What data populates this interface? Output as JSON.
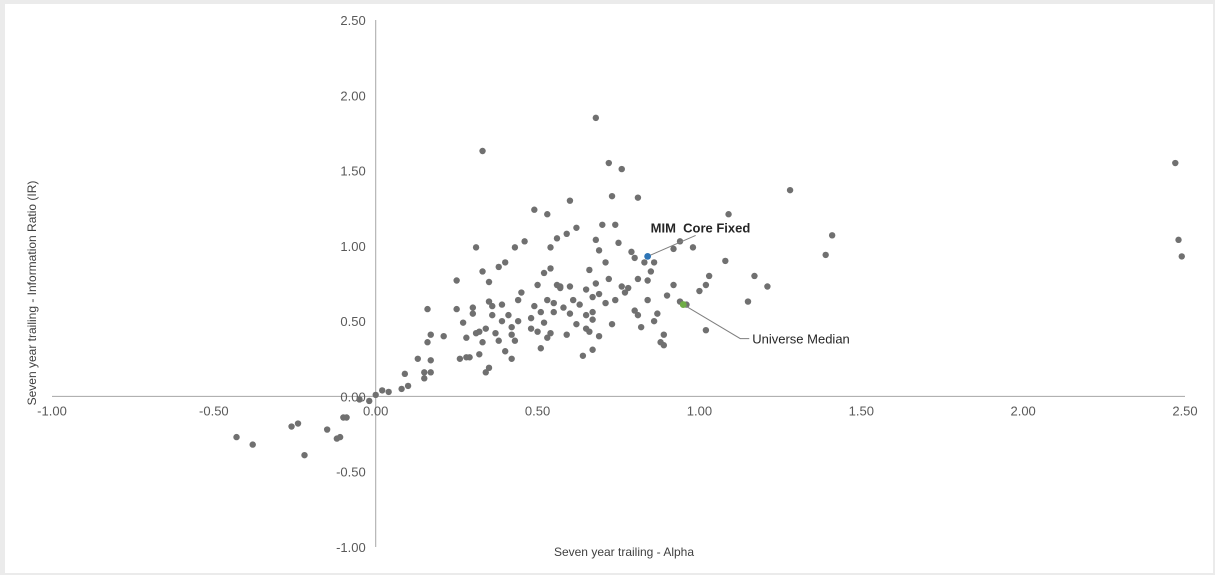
{
  "chart_data": {
    "type": "scatter",
    "title": "",
    "xlabel": "Seven year trailing -  Alpha",
    "ylabel": "Seven year trailing - Information Ratio (IR)",
    "xlim": [
      -1.0,
      2.5
    ],
    "ylim": [
      -1.0,
      2.5
    ],
    "x_ticks": [
      "-1.00",
      "-0.50",
      "0.00",
      "0.50",
      "1.00",
      "1.50",
      "2.00",
      "2.50"
    ],
    "y_ticks": [
      "2.50",
      "2.00",
      "1.50",
      "1.00",
      "0.50",
      "0.00",
      "-0.50",
      "-1.00"
    ],
    "grid": false,
    "legend": "none",
    "colors": {
      "points": "#707070",
      "highlight": "#2e75b6",
      "median": "#70ad47",
      "axis": "#a6a6a6"
    },
    "series": [
      {
        "points": [
          [
            -0.43,
            -0.27
          ],
          [
            -0.38,
            -0.32
          ],
          [
            -0.26,
            -0.2
          ],
          [
            -0.24,
            -0.18
          ],
          [
            -0.22,
            -0.39
          ],
          [
            -0.15,
            -0.22
          ],
          [
            -0.12,
            -0.28
          ],
          [
            -0.11,
            -0.27
          ],
          [
            -0.1,
            -0.14
          ],
          [
            -0.09,
            -0.14
          ],
          [
            -0.05,
            -0.02
          ],
          [
            -0.02,
            -0.03
          ],
          [
            0.0,
            0.01
          ],
          [
            0.02,
            0.04
          ],
          [
            0.04,
            0.03
          ],
          [
            0.08,
            0.05
          ],
          [
            0.09,
            0.15
          ],
          [
            0.1,
            0.07
          ],
          [
            0.13,
            0.25
          ],
          [
            0.15,
            0.16
          ],
          [
            0.15,
            0.12
          ],
          [
            0.16,
            0.58
          ],
          [
            0.16,
            0.36
          ],
          [
            0.17,
            0.16
          ],
          [
            0.17,
            0.24
          ],
          [
            0.17,
            0.41
          ],
          [
            0.21,
            0.4
          ],
          [
            0.25,
            0.58
          ],
          [
            0.25,
            0.77
          ],
          [
            0.26,
            0.25
          ],
          [
            0.27,
            0.49
          ],
          [
            0.28,
            0.39
          ],
          [
            0.28,
            0.26
          ],
          [
            0.29,
            0.26
          ],
          [
            0.3,
            0.59
          ],
          [
            0.3,
            0.55
          ],
          [
            0.31,
            0.42
          ],
          [
            0.31,
            0.99
          ],
          [
            0.32,
            0.28
          ],
          [
            0.32,
            0.43
          ],
          [
            0.33,
            0.36
          ],
          [
            0.33,
            0.83
          ],
          [
            0.33,
            1.63
          ],
          [
            0.34,
            0.16
          ],
          [
            0.34,
            0.45
          ],
          [
            0.35,
            0.19
          ],
          [
            0.35,
            0.63
          ],
          [
            0.35,
            0.76
          ],
          [
            0.36,
            0.54
          ],
          [
            0.36,
            0.6
          ],
          [
            0.37,
            0.42
          ],
          [
            0.38,
            0.86
          ],
          [
            0.38,
            0.37
          ],
          [
            0.39,
            0.5
          ],
          [
            0.39,
            0.61
          ],
          [
            0.4,
            0.89
          ],
          [
            0.4,
            0.3
          ],
          [
            0.41,
            0.54
          ],
          [
            0.42,
            0.46
          ],
          [
            0.42,
            0.41
          ],
          [
            0.42,
            0.25
          ],
          [
            0.43,
            0.99
          ],
          [
            0.43,
            0.37
          ],
          [
            0.44,
            0.5
          ],
          [
            0.44,
            0.64
          ],
          [
            0.45,
            0.69
          ],
          [
            0.46,
            1.03
          ],
          [
            0.48,
            0.52
          ],
          [
            0.48,
            0.45
          ],
          [
            0.49,
            1.24
          ],
          [
            0.49,
            0.6
          ],
          [
            0.5,
            0.43
          ],
          [
            0.5,
            0.74
          ],
          [
            0.51,
            0.56
          ],
          [
            0.51,
            0.32
          ],
          [
            0.52,
            0.82
          ],
          [
            0.52,
            0.49
          ],
          [
            0.53,
            1.21
          ],
          [
            0.53,
            0.39
          ],
          [
            0.53,
            0.64
          ],
          [
            0.54,
            0.42
          ],
          [
            0.54,
            0.85
          ],
          [
            0.54,
            0.99
          ],
          [
            0.55,
            0.62
          ],
          [
            0.55,
            0.56
          ],
          [
            0.56,
            0.74
          ],
          [
            0.56,
            1.05
          ],
          [
            0.57,
            0.72
          ],
          [
            0.57,
            0.73
          ],
          [
            0.58,
            0.59
          ],
          [
            0.59,
            0.41
          ],
          [
            0.59,
            1.08
          ],
          [
            0.6,
            0.55
          ],
          [
            0.6,
            1.3
          ],
          [
            0.6,
            0.73
          ],
          [
            0.61,
            0.64
          ],
          [
            0.62,
            0.48
          ],
          [
            0.62,
            1.12
          ],
          [
            0.63,
            0.61
          ],
          [
            0.64,
            0.27
          ],
          [
            0.65,
            0.71
          ],
          [
            0.65,
            0.45
          ],
          [
            0.65,
            0.54
          ],
          [
            0.66,
            0.84
          ],
          [
            0.66,
            0.43
          ],
          [
            0.67,
            0.31
          ],
          [
            0.67,
            0.51
          ],
          [
            0.67,
            0.66
          ],
          [
            0.67,
            0.56
          ],
          [
            0.68,
            1.04
          ],
          [
            0.68,
            0.75
          ],
          [
            0.68,
            1.85
          ],
          [
            0.69,
            0.68
          ],
          [
            0.69,
            0.4
          ],
          [
            0.69,
            0.97
          ],
          [
            0.7,
            1.14
          ],
          [
            0.71,
            0.89
          ],
          [
            0.71,
            0.62
          ],
          [
            0.72,
            0.78
          ],
          [
            0.72,
            1.55
          ],
          [
            0.73,
            0.48
          ],
          [
            0.73,
            1.33
          ],
          [
            0.74,
            1.14
          ],
          [
            0.74,
            0.64
          ],
          [
            0.75,
            1.02
          ],
          [
            0.76,
            0.73
          ],
          [
            0.76,
            1.51
          ],
          [
            0.77,
            0.69
          ],
          [
            0.78,
            0.72
          ],
          [
            0.79,
            0.96
          ],
          [
            0.8,
            0.92
          ],
          [
            0.8,
            0.57
          ],
          [
            0.81,
            0.54
          ],
          [
            0.81,
            1.32
          ],
          [
            0.81,
            0.78
          ],
          [
            0.82,
            0.46
          ],
          [
            0.83,
            0.89
          ],
          [
            0.84,
            0.77
          ],
          [
            0.84,
            0.64
          ],
          [
            0.85,
            0.83
          ],
          [
            0.86,
            0.89
          ],
          [
            0.86,
            0.5
          ],
          [
            0.87,
            0.55
          ],
          [
            0.88,
            0.36
          ],
          [
            0.89,
            0.34
          ],
          [
            0.89,
            0.41
          ],
          [
            0.9,
            0.67
          ],
          [
            0.92,
            0.74
          ],
          [
            0.92,
            0.98
          ],
          [
            0.94,
            0.63
          ],
          [
            0.94,
            1.03
          ],
          [
            0.96,
            0.61
          ],
          [
            0.98,
            0.99
          ],
          [
            1.0,
            0.7
          ],
          [
            1.02,
            0.74
          ],
          [
            1.02,
            0.44
          ],
          [
            1.03,
            0.8
          ],
          [
            1.08,
            0.9
          ],
          [
            1.09,
            1.21
          ],
          [
            1.15,
            0.63
          ],
          [
            1.17,
            0.8
          ],
          [
            1.21,
            0.73
          ],
          [
            1.28,
            1.37
          ],
          [
            1.39,
            0.94
          ],
          [
            1.41,
            1.07
          ],
          [
            2.47,
            1.55
          ],
          [
            2.48,
            1.04
          ],
          [
            2.49,
            0.93
          ]
        ]
      }
    ],
    "annotations": [
      {
        "label": "MIM  Core Fixed",
        "x": 0.84,
        "y": 0.93,
        "color": "#2e75b6",
        "bold": true
      },
      {
        "label": "Universe Median",
        "x": 0.95,
        "y": 0.61,
        "color": "#70ad47",
        "bold": false
      }
    ]
  }
}
